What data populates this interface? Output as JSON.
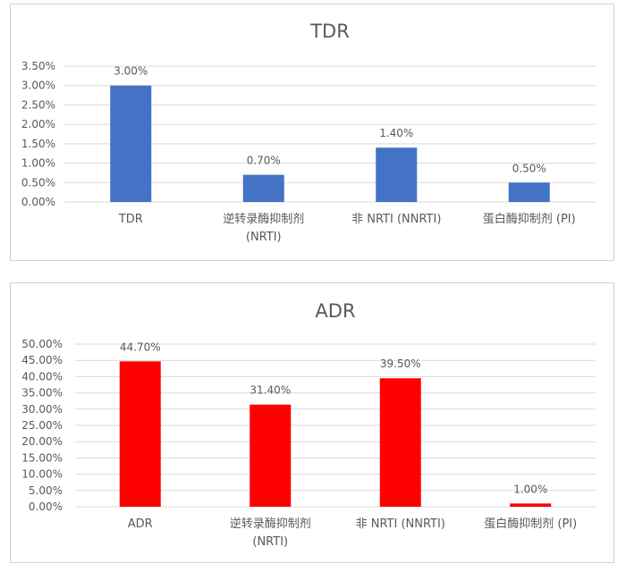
{
  "chart_data": [
    {
      "type": "bar",
      "title": "TDR",
      "categories": [
        [
          "TDR"
        ],
        [
          "逆转录酶抑制剂",
          "(NRTI)"
        ],
        [
          "非 NRTI (NNRTI)"
        ],
        [
          "蛋白酶抑制剂 (PI)"
        ]
      ],
      "values": [
        3.0,
        0.7,
        1.4,
        0.5
      ],
      "value_labels": [
        "3.00%",
        "0.70%",
        "1.40%",
        "0.50%"
      ],
      "yticks": [
        "0.00%",
        "0.50%",
        "1.00%",
        "1.50%",
        "2.00%",
        "2.50%",
        "3.00%",
        "3.50%"
      ],
      "ylim": [
        0,
        3.5
      ],
      "bar_color": "#4472c4",
      "grid": true
    },
    {
      "type": "bar",
      "title": "ADR",
      "categories": [
        [
          "ADR"
        ],
        [
          "逆转录酶抑制剂",
          "(NRTI)"
        ],
        [
          "非 NRTI (NNRTI)"
        ],
        [
          "蛋白酶抑制剂 (PI)"
        ]
      ],
      "values": [
        44.7,
        31.4,
        39.5,
        1.0
      ],
      "value_labels": [
        "44.70%",
        "31.40%",
        "39.50%",
        "1.00%"
      ],
      "yticks": [
        "0.00%",
        "5.00%",
        "10.00%",
        "15.00%",
        "20.00%",
        "25.00%",
        "30.00%",
        "35.00%",
        "40.00%",
        "45.00%",
        "50.00%"
      ],
      "ylim": [
        0,
        50
      ],
      "bar_color": "#ff0000",
      "grid": true
    }
  ]
}
